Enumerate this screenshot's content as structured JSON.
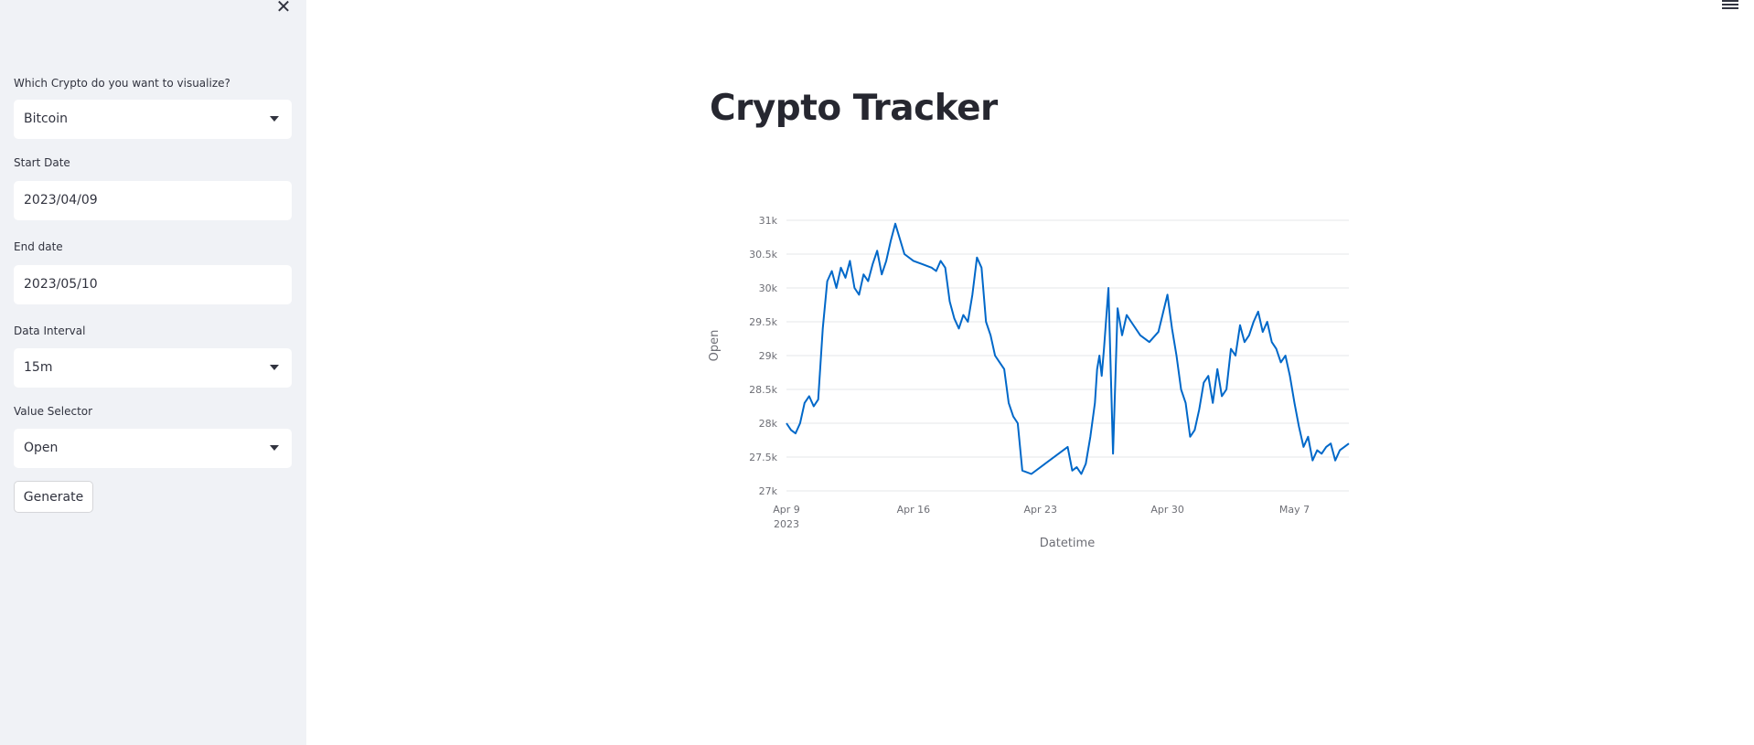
{
  "sidebar": {
    "crypto_label": "Which Crypto do you want to visualize?",
    "crypto_value": "Bitcoin",
    "start_label": "Start Date",
    "start_value": "2023/04/09",
    "end_label": "End date",
    "end_value": "2023/05/10",
    "interval_label": "Data Interval",
    "interval_value": "15m",
    "value_label": "Value Selector",
    "value_value": "Open",
    "generate_label": "Generate"
  },
  "main": {
    "title": "Crypto Tracker"
  },
  "colors": {
    "line": "#0068c9",
    "sidebar_bg": "#f0f2f6",
    "grid": "#e6e7ea"
  },
  "chart_data": {
    "type": "line",
    "xlabel": "Datetime",
    "ylabel": "Open",
    "ylim": [
      27000,
      31000
    ],
    "yticks": [
      27000,
      27500,
      28000,
      28500,
      29000,
      29500,
      30000,
      30500,
      31000
    ],
    "ytick_labels": [
      "27k",
      "27.5k",
      "28k",
      "28.5k",
      "29k",
      "29.5k",
      "30k",
      "30.5k",
      "31k"
    ],
    "xlim": [
      "2023-04-09",
      "2023-05-10"
    ],
    "xtick_labels": [
      {
        "date": "2023-04-09",
        "label": "Apr 9",
        "sub": "2023"
      },
      {
        "date": "2023-04-16",
        "label": "Apr 16",
        "sub": ""
      },
      {
        "date": "2023-04-23",
        "label": "Apr 23",
        "sub": ""
      },
      {
        "date": "2023-04-30",
        "label": "Apr 30",
        "sub": ""
      },
      {
        "date": "2023-05-07",
        "label": "May 7",
        "sub": ""
      }
    ],
    "grid": true,
    "series": [
      {
        "x": [
          "2023-04-09 00:00",
          "2023-04-09 06:00",
          "2023-04-09 12:00",
          "2023-04-09 18:00",
          "2023-04-10 00:00",
          "2023-04-10 06:00",
          "2023-04-10 12:00",
          "2023-04-10 18:00",
          "2023-04-11 00:00",
          "2023-04-11 06:00",
          "2023-04-11 12:00",
          "2023-04-11 18:00",
          "2023-04-12 00:00",
          "2023-04-12 06:00",
          "2023-04-12 12:00",
          "2023-04-12 18:00",
          "2023-04-13 00:00",
          "2023-04-13 06:00",
          "2023-04-13 12:00",
          "2023-04-13 18:00",
          "2023-04-14 00:00",
          "2023-04-14 06:00",
          "2023-04-14 12:00",
          "2023-04-14 18:00",
          "2023-04-15 00:00",
          "2023-04-15 12:00",
          "2023-04-16 00:00",
          "2023-04-16 12:00",
          "2023-04-17 00:00",
          "2023-04-17 06:00",
          "2023-04-17 12:00",
          "2023-04-17 18:00",
          "2023-04-18 00:00",
          "2023-04-18 06:00",
          "2023-04-18 12:00",
          "2023-04-18 18:00",
          "2023-04-19 00:00",
          "2023-04-19 06:00",
          "2023-04-19 12:00",
          "2023-04-19 18:00",
          "2023-04-20 00:00",
          "2023-04-20 06:00",
          "2023-04-20 12:00",
          "2023-04-20 18:00",
          "2023-04-21 00:00",
          "2023-04-21 06:00",
          "2023-04-21 12:00",
          "2023-04-21 18:00",
          "2023-04-22 00:00",
          "2023-04-22 12:00",
          "2023-04-24 12:00",
          "2023-04-24 18:00",
          "2023-04-25 00:00",
          "2023-04-25 06:00",
          "2023-04-25 12:00",
          "2023-04-25 18:00",
          "2023-04-26 00:00",
          "2023-04-26 03:00",
          "2023-04-26 06:00",
          "2023-04-26 09:00",
          "2023-04-26 12:00",
          "2023-04-26 18:00",
          "2023-04-27 00:00",
          "2023-04-27 06:00",
          "2023-04-27 12:00",
          "2023-04-27 18:00",
          "2023-04-28 00:00",
          "2023-04-28 12:00",
          "2023-04-29 00:00",
          "2023-04-29 12:00",
          "2023-04-30 00:00",
          "2023-04-30 06:00",
          "2023-04-30 12:00",
          "2023-04-30 18:00",
          "2023-05-01 00:00",
          "2023-05-01 06:00",
          "2023-05-01 12:00",
          "2023-05-01 18:00",
          "2023-05-02 00:00",
          "2023-05-02 06:00",
          "2023-05-02 12:00",
          "2023-05-02 18:00",
          "2023-05-03 00:00",
          "2023-05-03 06:00",
          "2023-05-03 12:00",
          "2023-05-03 18:00",
          "2023-05-04 00:00",
          "2023-05-04 06:00",
          "2023-05-04 12:00",
          "2023-05-04 18:00",
          "2023-05-05 00:00",
          "2023-05-05 06:00",
          "2023-05-05 12:00",
          "2023-05-05 18:00",
          "2023-05-06 00:00",
          "2023-05-06 06:00",
          "2023-05-06 12:00",
          "2023-05-06 18:00",
          "2023-05-07 00:00",
          "2023-05-07 06:00",
          "2023-05-07 12:00",
          "2023-05-07 18:00",
          "2023-05-08 00:00",
          "2023-05-08 06:00",
          "2023-05-08 12:00",
          "2023-05-08 18:00",
          "2023-05-09 00:00",
          "2023-05-09 06:00",
          "2023-05-09 12:00",
          "2023-05-09 18:00",
          "2023-05-10 00:00"
        ],
        "values": [
          28000,
          27900,
          27850,
          28000,
          28300,
          28400,
          28250,
          28350,
          29400,
          30100,
          30250,
          30000,
          30300,
          30150,
          30400,
          30000,
          29900,
          30200,
          30100,
          30350,
          30550,
          30200,
          30400,
          30700,
          30950,
          30500,
          30400,
          30350,
          30300,
          30250,
          30400,
          30300,
          29800,
          29550,
          29400,
          29600,
          29500,
          29900,
          30450,
          30300,
          29500,
          29300,
          29000,
          28900,
          28800,
          28300,
          28100,
          28000,
          27300,
          27250,
          27650,
          27300,
          27350,
          27250,
          27400,
          27800,
          28300,
          28800,
          29000,
          28700,
          29100,
          30000,
          27550,
          29700,
          29300,
          29600,
          29500,
          29300,
          29200,
          29350,
          29900,
          29400,
          29000,
          28500,
          28300,
          27800,
          27900,
          28200,
          28600,
          28700,
          28300,
          28800,
          28400,
          28500,
          29100,
          29000,
          29450,
          29200,
          29300,
          29500,
          29650,
          29350,
          29500,
          29200,
          29100,
          28900,
          29000,
          28700,
          28300,
          27950,
          27650,
          27800,
          27450,
          27600,
          27550,
          27650,
          27700,
          27450,
          27600,
          27650,
          27700
        ]
      }
    ]
  }
}
